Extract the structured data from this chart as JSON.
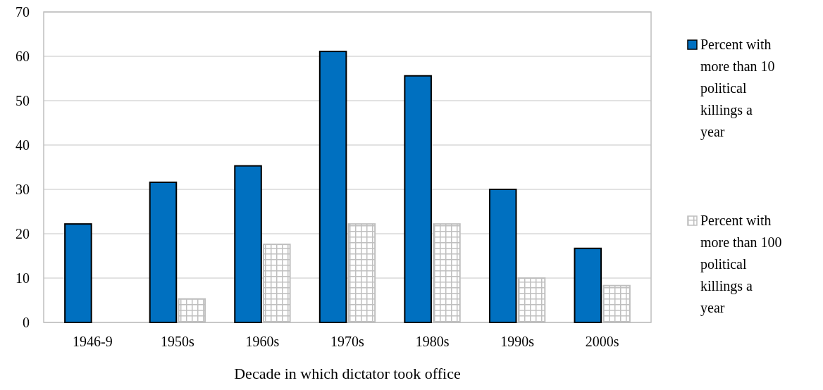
{
  "chart_data": {
    "type": "bar",
    "xlabel": "Decade in which dictator took office",
    "categories": [
      "1946-9",
      "1950s",
      "1960s",
      "1970s",
      "1980s",
      "1990s",
      "2000s"
    ],
    "series": [
      {
        "name": "Percent with more than 10 political killings a year",
        "color": "#0070c0",
        "values": [
          22.2,
          31.6,
          35.3,
          61.1,
          55.6,
          30,
          16.7
        ]
      },
      {
        "name": "Percent with more than 100 political killings a year",
        "color": "#bfbfbf",
        "values": [
          0,
          5.3,
          17.6,
          22.2,
          22.2,
          10,
          8.3
        ]
      }
    ],
    "ylim": [
      0,
      70
    ],
    "yticks": [
      0,
      10,
      20,
      30,
      40,
      50,
      60,
      70
    ],
    "grid": "y",
    "legend": "right"
  }
}
